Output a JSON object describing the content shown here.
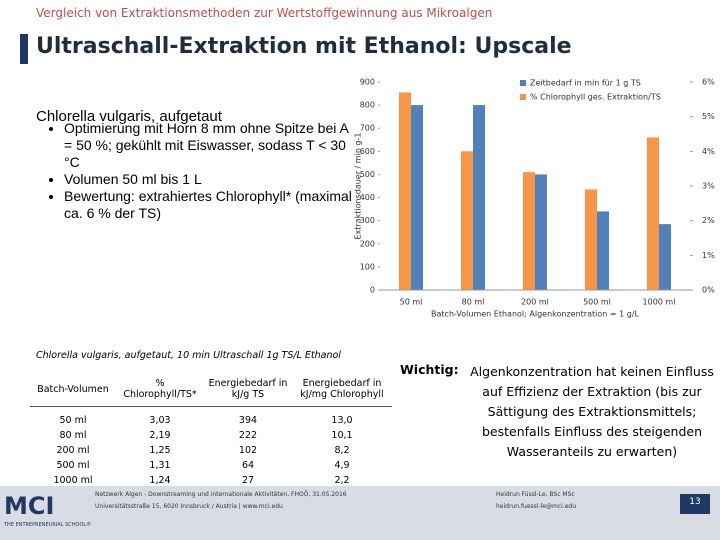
{
  "header": {
    "kicker": "Vergleich von Extraktionsmethoden zur Wertstoffgewinnung aus Mikroalgen",
    "title": "Ultraschall-Extraktion mit Ethanol: Upscale"
  },
  "intro": {
    "heading": "Chlorella vulgaris, aufgetaut",
    "bullets": [
      "Optimierung mit Horn 8 mm ohne Spitze bei A = 50 %; gekühlt mit Eiswasser, sodass T < 30 °C",
      "Volumen 50 ml bis 1 L",
      "Bewertung: extrahiertes Chlorophyll* (maximal ca. 6 % der TS)"
    ]
  },
  "chart_data": {
    "type": "bar",
    "categories": [
      "50 ml",
      "80 ml",
      "200 ml",
      "500 ml",
      "1000 ml"
    ],
    "xlabel": "Batch-Volumen Ethanol; Algenkonzentration = 1 g/L",
    "ylabel": "Extraktionsdauer / min g-1",
    "ylim": [
      0,
      900
    ],
    "yticks": [
      0,
      100,
      200,
      300,
      400,
      500,
      600,
      700,
      800,
      900
    ],
    "y2lim": [
      0,
      6
    ],
    "y2ticks": [
      {
        "value": 0,
        "label": "0%"
      },
      {
        "value": 1,
        "label": "1%"
      },
      {
        "value": 2,
        "label": "2%"
      },
      {
        "value": 3,
        "label": "3%"
      },
      {
        "value": 4,
        "label": "4%"
      },
      {
        "value": 5,
        "label": "5%"
      },
      {
        "value": 6,
        "label": "6%"
      }
    ],
    "series": [
      {
        "name": "Zeitbedarf in min für 1 g TS",
        "color": "#4f81bd",
        "values": [
          800,
          800,
          500,
          340,
          285
        ]
      },
      {
        "name": "% Chlorophyll ges. Extraktion/TS",
        "color": "#f79646",
        "axis": "y2",
        "values": [
          5.7,
          4.0,
          3.4,
          2.9,
          4.4
        ]
      }
    ]
  },
  "table": {
    "caption": "Chlorella vulgaris, aufgetaut, 10 min Ultraschall 1g TS/L Ethanol",
    "header": [
      "Batch-Volumen",
      "% Chlorophyll/TS*",
      "Energiebedarf in kJ/g TS",
      "Energiebedarf in kJ/mg Chlorophyll"
    ],
    "rows": [
      [
        "50 ml",
        "3,03",
        "394",
        "13,0"
      ],
      [
        "80 ml",
        "2,19",
        "222",
        "10,1"
      ],
      [
        "200 ml",
        "1,25",
        "102",
        "8,2"
      ],
      [
        "500 ml",
        "1,31",
        "64",
        "4,9"
      ],
      [
        "1000 ml",
        "1,24",
        "27",
        "2,2"
      ]
    ]
  },
  "note": {
    "label": "Wichtig:",
    "text": "Algenkonzentration hat keinen Einfluss auf Effizienz der Extraktion (bis zur Sättigung des Extraktionsmittels; bestenfalls Einfluss des steigenden Wasseranteils zu erwarten)"
  },
  "footer": {
    "logo": "MCI",
    "tagline": "THE ENTREPRENEURIAL SCHOOL®",
    "event": "Netzwerk Algen - Downstreaming und internationale Aktivitäten, FHOÖ, 31.05.2016",
    "address": "Universitätsstraße 15, 6020 Innsbruck / Austria | www.mci.edu",
    "author": "Heidrun Füssl-Le, BSc MSc",
    "email": "heidrun.fuessl-le@mci.edu",
    "page": "13"
  }
}
